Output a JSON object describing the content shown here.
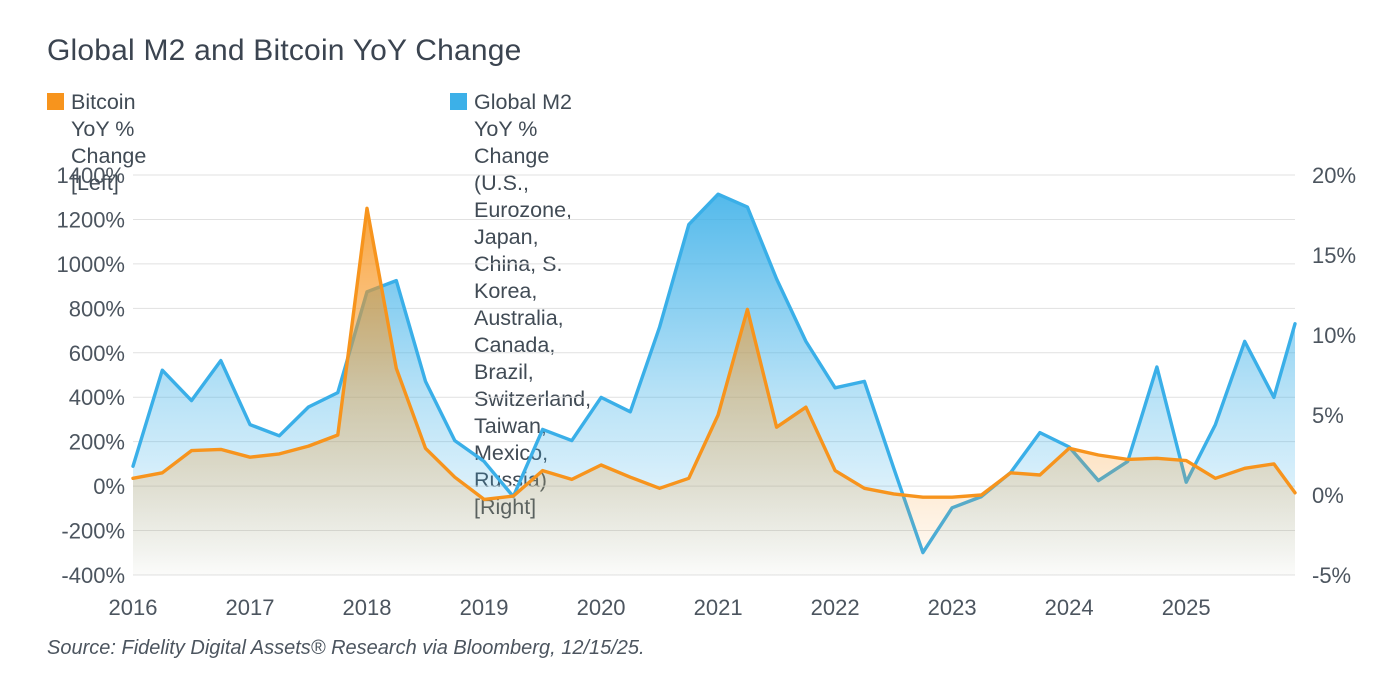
{
  "header": {
    "title": "Global M2 and Bitcoin YoY Change"
  },
  "legend": [
    {
      "label": "Bitcoin YoY % Change [Left]",
      "lines": [
        "Bitcoin YoY % Change [Left]"
      ],
      "color": "#f7941d"
    },
    {
      "label": "Global M2 YoY % Change (U.S., Eurozone, Japan, China, S. Korea, Australia, Canada, Brazil, Switzerland, Taiwan, Mexico, Russia) [Right]",
      "lines": [
        "Global M2 YoY % Change (U.S., Eurozone, Japan, China, S. Korea,",
        "Australia, Canada, Brazil, Switzerland, Taiwan, Mexico, Russia) [Right]"
      ],
      "color": "#3cb0e8"
    }
  ],
  "source": "Source: Fidelity Digital Assets® Research via Bloomberg, 12/15/25.",
  "chart_data": {
    "type": "area",
    "title": "Global M2 and Bitcoin YoY Change",
    "grid": true,
    "legend_position": "top",
    "x": [
      2016.0,
      2016.25,
      2016.5,
      2016.75,
      2017.0,
      2017.25,
      2017.5,
      2017.75,
      2018.0,
      2018.25,
      2018.5,
      2018.75,
      2019.0,
      2019.25,
      2019.5,
      2019.75,
      2020.0,
      2020.25,
      2020.5,
      2020.75,
      2021.0,
      2021.25,
      2021.5,
      2021.75,
      2022.0,
      2022.25,
      2022.5,
      2022.75,
      2023.0,
      2023.25,
      2023.5,
      2023.75,
      2024.0,
      2024.25,
      2024.5,
      2024.75,
      2025.0,
      2025.25,
      2025.5,
      2025.75,
      2025.93
    ],
    "x_ticks": [
      2016,
      2017,
      2018,
      2019,
      2020,
      2021,
      2022,
      2023,
      2024,
      2025
    ],
    "series": [
      {
        "name": "Global M2 YoY % Change",
        "axis": "right",
        "color": "#3aafe8",
        "values": [
          1.8,
          7.8,
          5.9,
          8.4,
          4.4,
          3.7,
          5.5,
          6.4,
          12.7,
          13.4,
          7.1,
          3.4,
          2.1,
          -0.1,
          4.1,
          3.4,
          6.1,
          5.2,
          10.5,
          16.9,
          18.8,
          18.0,
          13.5,
          9.6,
          6.7,
          7.1,
          1.7,
          -3.6,
          -0.8,
          -0.1,
          1.4,
          3.9,
          3.0,
          0.9,
          2.1,
          8.0,
          0.8,
          4.4,
          9.6,
          6.1,
          10.7
        ]
      },
      {
        "name": "Bitcoin YoY % Change",
        "axis": "left",
        "color": "#f7941d",
        "values": [
          35,
          60,
          160,
          165,
          130,
          145,
          180,
          230,
          1250,
          530,
          170,
          40,
          -60,
          -45,
          70,
          30,
          95,
          40,
          -10,
          35,
          320,
          795,
          265,
          355,
          70,
          -10,
          -35,
          -50,
          -50,
          -40,
          60,
          50,
          170,
          140,
          120,
          125,
          115,
          35,
          80,
          100,
          -30
        ]
      }
    ],
    "left_axis": {
      "label": "Bitcoin YoY % Change",
      "tick_labels": [
        "1400%",
        "1200%",
        "1000%",
        "800%",
        "600%",
        "400%",
        "200%",
        "0%",
        "-200%",
        "-400%"
      ],
      "tick_values": [
        1400,
        1200,
        1000,
        800,
        600,
        400,
        200,
        0,
        -200,
        -400
      ],
      "range": [
        -400,
        1400
      ]
    },
    "right_axis": {
      "label": "Global M2 YoY % Change",
      "tick_labels": [
        "20%",
        "15%",
        "10%",
        "5%",
        "0%",
        "-5%"
      ],
      "tick_values": [
        20,
        15,
        10,
        5,
        0,
        -5
      ],
      "range": [
        -5,
        20
      ]
    }
  }
}
